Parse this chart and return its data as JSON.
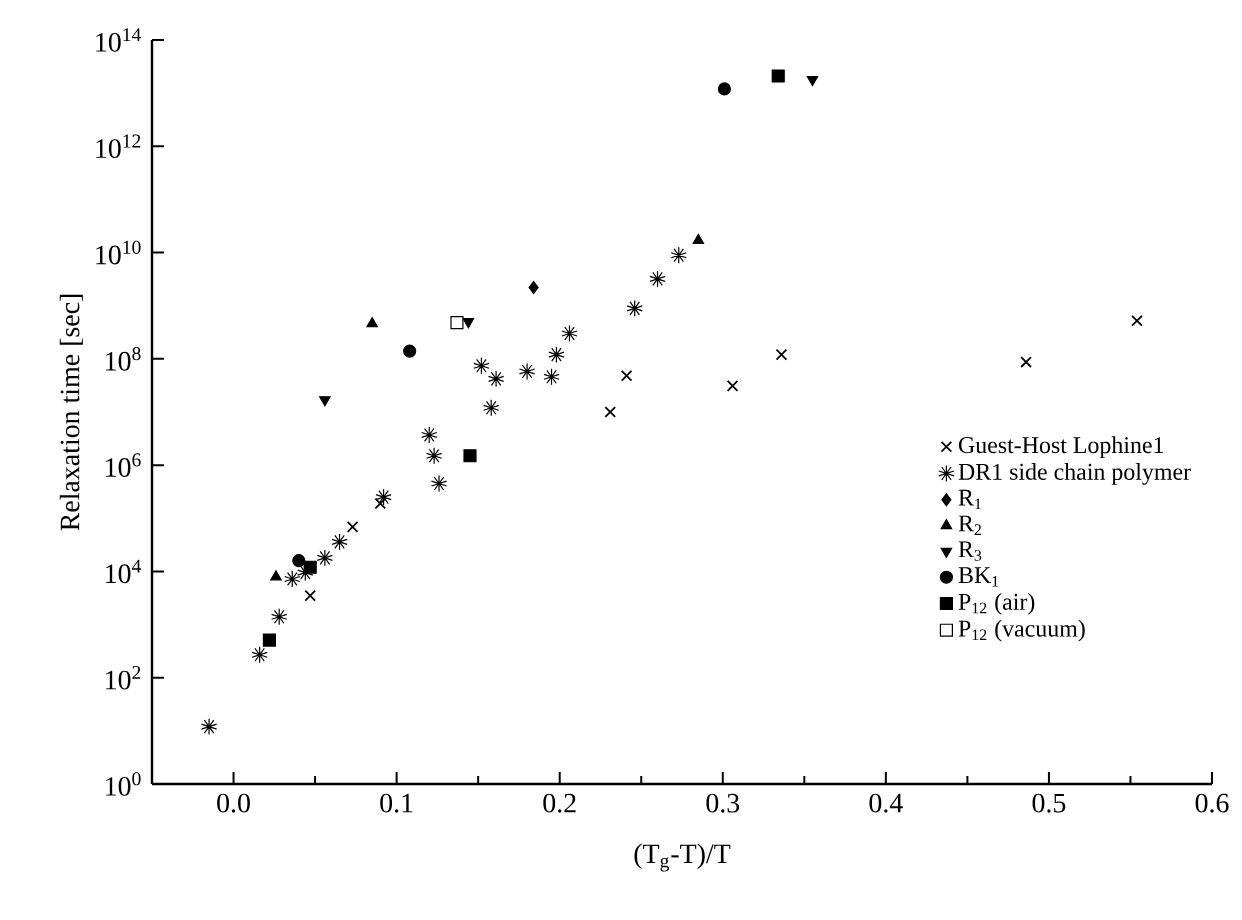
{
  "chart_data": {
    "type": "scatter",
    "xlabel": "(T$_{g}$-T)/T",
    "ylabel": "Relaxation time [sec]",
    "log": "y",
    "grid": false,
    "legend": "right",
    "xlim": [
      -0.05,
      0.6
    ],
    "xticks": [
      {
        "value": 0,
        "label": "0.0"
      },
      {
        "value": 0.1,
        "label": "0.1"
      },
      {
        "value": 0.2,
        "label": "0.2"
      },
      {
        "value": 0.3,
        "label": "0.3"
      },
      {
        "value": 0.4,
        "label": "0.4"
      },
      {
        "value": 0.5,
        "label": "0.5"
      },
      {
        "value": 0.6,
        "label": "0.6"
      }
    ],
    "ylim": [
      1,
      100000000000000.0
    ],
    "yticks": [
      {
        "value": 1,
        "label": "10$^{0}$"
      },
      {
        "value": 100,
        "label": "10$^{2}$"
      },
      {
        "value": 10000.0,
        "label": "10$^{4}$"
      },
      {
        "value": 1000000.0,
        "label": "10$^{6}$"
      },
      {
        "value": 100000000.0,
        "label": "10$^{8}$"
      },
      {
        "value": 10000000000.0,
        "label": "10$^{10}$"
      },
      {
        "value": 1000000000000.0,
        "label": "10$^{12}$"
      },
      {
        "value": 100000000000000.0,
        "label": "10$^{14}$"
      }
    ],
    "series": [
      {
        "name": "Guest-Host Lophine1",
        "color": "#000000",
        "marker": "cross",
        "x": [
          0.047,
          0.073,
          0.09,
          0.231,
          0.241,
          0.306,
          0.336,
          0.486,
          0.554
        ],
        "values": [
          3500,
          69000,
          190000,
          10000000.0,
          48000000.0,
          31000000.0,
          120000000.0,
          87000000.0,
          520000000.0
        ]
      },
      {
        "name": "DR1 side chain polymer",
        "color": "#000000",
        "marker": "cross",
        "x": [
          -0.015,
          0.016,
          0.028,
          0.036,
          0.044,
          0.056,
          0.065,
          0.092,
          0.12,
          0.123,
          0.126,
          0.158,
          0.152,
          0.161,
          0.18,
          0.195,
          0.198,
          0.206,
          0.246,
          0.26,
          0.273
        ],
        "values": [
          12,
          270,
          1400,
          7200,
          9500,
          18000,
          36000,
          250000,
          3700000.0,
          1500000.0,
          450000,
          12000000.0,
          74000000.0,
          42000000.0,
          58000000.0,
          46000000.0,
          120000000.0,
          300000000.0,
          890000000.0,
          3200000000.0,
          8900000000.0
        ]
      },
      {
        "name": "R$_{1}$",
        "color": "#000000",
        "marker": "diamond",
        "x": [
          0.184
        ],
        "values": [
          2200000000.0
        ]
      },
      {
        "name": "R$_{2}$",
        "color": "#000000",
        "marker": "triangle",
        "x": [
          0.026,
          0.085,
          0.285
        ],
        "values": [
          7900,
          460000000.0,
          17000000000.0
        ]
      },
      {
        "name": "R$_{3}$",
        "color": "#000000",
        "marker": "triangle_down",
        "x": [
          0.056,
          0.144,
          0.355
        ],
        "values": [
          17000000.0,
          500000000.0,
          18000000000000.0
        ]
      },
      {
        "name": "BK$_{1}$",
        "color": "#000000",
        "marker": "circle",
        "x": [
          0.04,
          0.108,
          0.301
        ],
        "values": [
          16000,
          140000000.0,
          12000000000000.0
        ]
      },
      {
        "name": "P$_{12}$ (air)",
        "color": "#000000",
        "marker": "square",
        "x": [
          0.022,
          0.047,
          0.145,
          0.334
        ],
        "values": [
          510,
          12000,
          1500000.0,
          21000000000000.0
        ]
      },
      {
        "name": "P$_{12}$ (vacuum)",
        "color": "#ffffff",
        "marker": "square",
        "x": [
          0.137
        ],
        "values": [
          480000000.0
        ]
      }
    ]
  }
}
